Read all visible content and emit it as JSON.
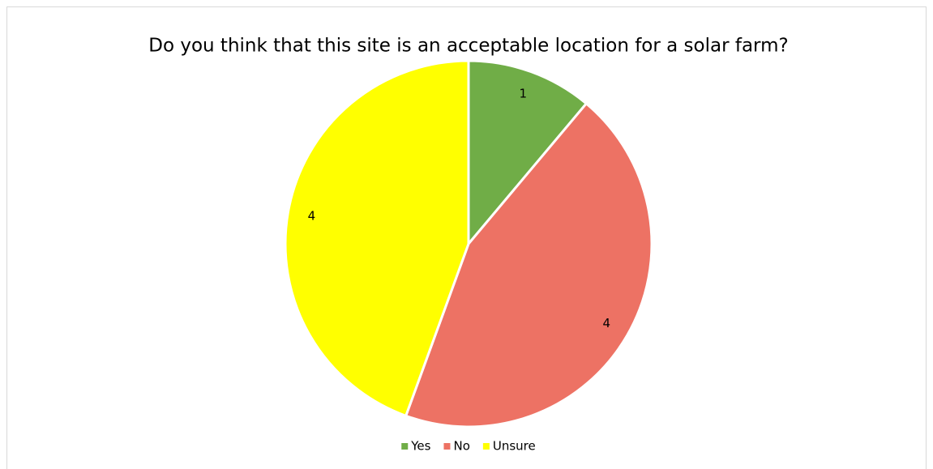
{
  "chart_data": {
    "type": "pie",
    "title": "Do you think that this site is an acceptable location for a solar farm?",
    "categories": [
      "Yes",
      "No",
      "Unsure"
    ],
    "values": [
      1,
      4,
      4
    ],
    "colors": [
      "#70ad47",
      "#ed7264",
      "#ffff00"
    ],
    "legend": "bottom"
  }
}
